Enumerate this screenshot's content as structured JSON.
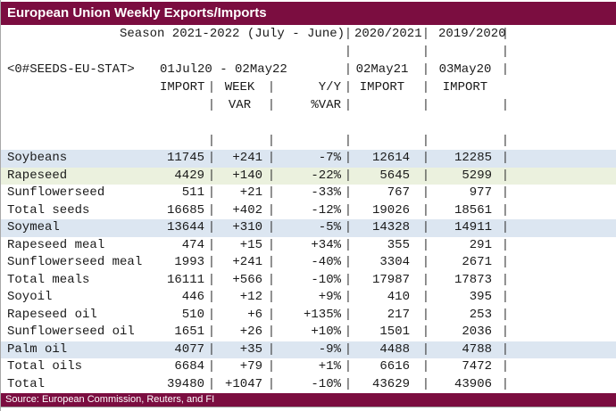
{
  "title": "European Union Weekly Exports/Imports",
  "footer": {
    "source": "Source: European Commission, Reuters, and FI"
  },
  "colors": {
    "maroon": "#7B0D40",
    "highlight_blue": "#DCE6F1",
    "highlight_green": "#EBF1DE"
  },
  "header": {
    "pipe": "|",
    "season_title": "Season 2021-2022 (July - June)",
    "season_2021": "2020/2021",
    "season_2020": "2019/2020",
    "chain_ric": "<0#SEEDS-EU-STAT>",
    "date_range": "01Jul20 - 02May22",
    "asof_2021": "02May21",
    "asof_2020": "03May20",
    "import_label": "IMPORT",
    "week_label": "WEEK",
    "yy_label": "Y/Y",
    "var_label": "VAR",
    "pct_var_label": "%VAR",
    "import_2021_label": "IMPORT",
    "import_2020_label": "IMPORT"
  },
  "table": {
    "rows": [
      {
        "label": "Soybeans",
        "import": "11745",
        "week_var": "+241",
        "yy_pct": "-7%",
        "import_2021": "12614",
        "import_2020": "12285",
        "highlight": "blue"
      },
      {
        "label": "Rapeseed",
        "import": "4429",
        "week_var": "+140",
        "yy_pct": "-22%",
        "import_2021": "5645",
        "import_2020": "5299",
        "highlight": "green"
      },
      {
        "label": "Sunflowerseed",
        "import": "511",
        "week_var": "+21",
        "yy_pct": "-33%",
        "import_2021": "767",
        "import_2020": "977",
        "highlight": "none"
      },
      {
        "label": "Total seeds",
        "import": "16685",
        "week_var": "+402",
        "yy_pct": "-12%",
        "import_2021": "19026",
        "import_2020": "18561",
        "highlight": "none"
      },
      {
        "label": "Soymeal",
        "import": "13644",
        "week_var": "+310",
        "yy_pct": "-5%",
        "import_2021": "14328",
        "import_2020": "14911",
        "highlight": "blue"
      },
      {
        "label": "Rapeseed meal",
        "import": "474",
        "week_var": "+15",
        "yy_pct": "+34%",
        "import_2021": "355",
        "import_2020": "291",
        "highlight": "none"
      },
      {
        "label": "Sunflowerseed meal",
        "import": "1993",
        "week_var": "+241",
        "yy_pct": "-40%",
        "import_2021": "3304",
        "import_2020": "2671",
        "highlight": "none"
      },
      {
        "label": "Total meals",
        "import": "16111",
        "week_var": "+566",
        "yy_pct": "-10%",
        "import_2021": "17987",
        "import_2020": "17873",
        "highlight": "none"
      },
      {
        "label": "Soyoil",
        "import": "446",
        "week_var": "+12",
        "yy_pct": "+9%",
        "import_2021": "410",
        "import_2020": "395",
        "highlight": "none"
      },
      {
        "label": "Rapeseed oil",
        "import": "510",
        "week_var": "+6",
        "yy_pct": "+135%",
        "import_2021": "217",
        "import_2020": "253",
        "highlight": "none"
      },
      {
        "label": "Sunflowerseed oil",
        "import": "1651",
        "week_var": "+26",
        "yy_pct": "+10%",
        "import_2021": "1501",
        "import_2020": "2036",
        "highlight": "none"
      },
      {
        "label": "Palm oil",
        "import": "4077",
        "week_var": "+35",
        "yy_pct": "-9%",
        "import_2021": "4488",
        "import_2020": "4788",
        "highlight": "blue"
      },
      {
        "label": "Total oils",
        "import": "6684",
        "week_var": "+79",
        "yy_pct": "+1%",
        "import_2021": "6616",
        "import_2020": "7472",
        "highlight": "none"
      },
      {
        "label": "Total",
        "import": "39480",
        "week_var": "+1047",
        "yy_pct": "-10%",
        "import_2021": "43629",
        "import_2020": "43906",
        "highlight": "none"
      }
    ]
  }
}
